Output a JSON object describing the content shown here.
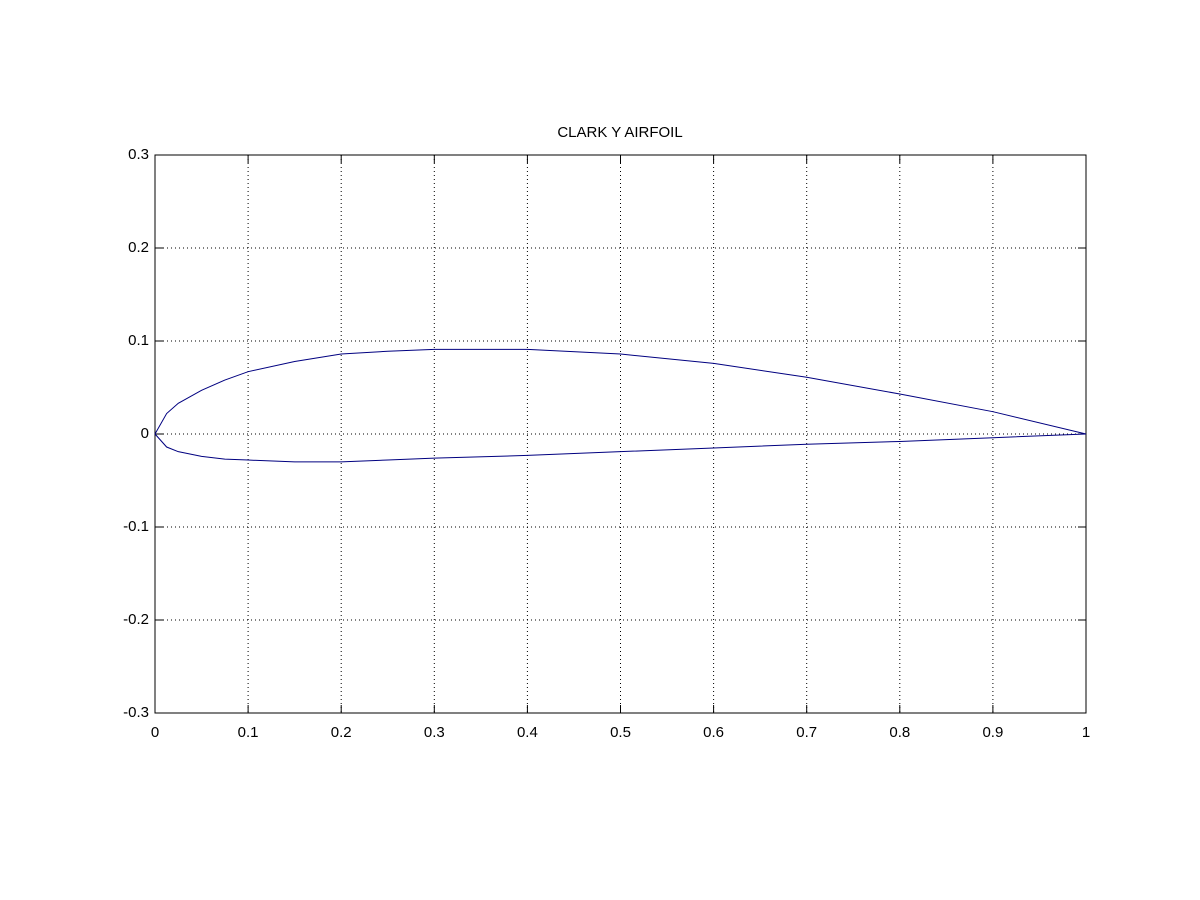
{
  "chart_data": {
    "type": "line",
    "title": "CLARK Y AIRFOIL",
    "x": [
      0,
      0.0125,
      0.025,
      0.05,
      0.075,
      0.1,
      0.15,
      0.2,
      0.25,
      0.3,
      0.4,
      0.5,
      0.6,
      0.7,
      0.8,
      0.9,
      1
    ],
    "series": [
      {
        "color": "#000080",
        "values": [
          0,
          0.022,
          0.033,
          0.047,
          0.058,
          0.067,
          0.078,
          0.086,
          0.089,
          0.091,
          0.091,
          0.086,
          0.076,
          0.061,
          0.043,
          0.024,
          0
        ]
      },
      {
        "color": "#000080",
        "values": [
          0,
          -0.014,
          -0.019,
          -0.024,
          -0.027,
          -0.028,
          -0.03,
          -0.03,
          -0.028,
          -0.026,
          -0.023,
          -0.019,
          -0.015,
          -0.011,
          -0.008,
          -0.004,
          0
        ]
      }
    ],
    "xlim": [
      0,
      1
    ],
    "ylim": [
      -0.3,
      0.3
    ],
    "xticks": [
      0,
      0.1,
      0.2,
      0.3,
      0.4,
      0.5,
      0.6,
      0.7,
      0.8,
      0.9,
      1
    ],
    "yticks": [
      -0.3,
      -0.2,
      -0.1,
      0,
      0.1,
      0.2,
      0.3
    ],
    "grid": true
  }
}
